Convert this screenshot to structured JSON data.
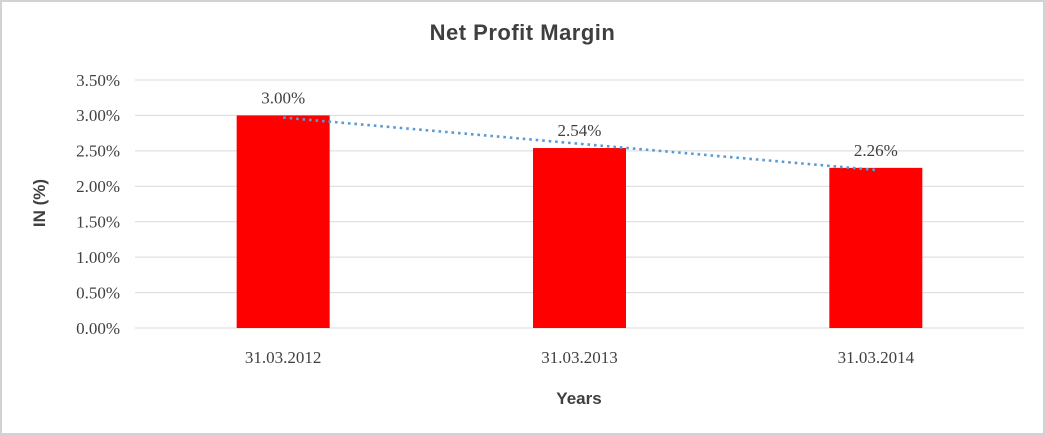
{
  "window": {
    "background_color": "#ffffff",
    "frame_color": "#d2d2d2"
  },
  "chart_data": {
    "type": "bar",
    "title": "Net Profit Margin",
    "categories": [
      "31.03.2012",
      "31.03.2013",
      "31.03.2014"
    ],
    "series": [
      {
        "name": "Net Profit Margin",
        "values": [
          3.0,
          2.54,
          2.26
        ]
      }
    ],
    "data_labels": [
      "3.00%",
      "2.54%",
      "2.26%"
    ],
    "xlabel": "Years",
    "ylabel": "IN (%)",
    "ylim": [
      0,
      3.5
    ],
    "ytick_step": 0.5,
    "ytick_labels": [
      "0.00%",
      "0.50%",
      "1.00%",
      "1.50%",
      "2.00%",
      "2.50%",
      "3.00%",
      "3.50%"
    ],
    "grid": true,
    "legend": "none",
    "bar_color": "#ff0000",
    "label_color": "#404040",
    "title_color": "#3f3f3f",
    "gridline_color": "#d9d9d9",
    "trendline": {
      "type": "linear",
      "style": "dotted",
      "color": "#5b9bd5",
      "start_value": 2.97,
      "end_value": 2.23
    }
  }
}
